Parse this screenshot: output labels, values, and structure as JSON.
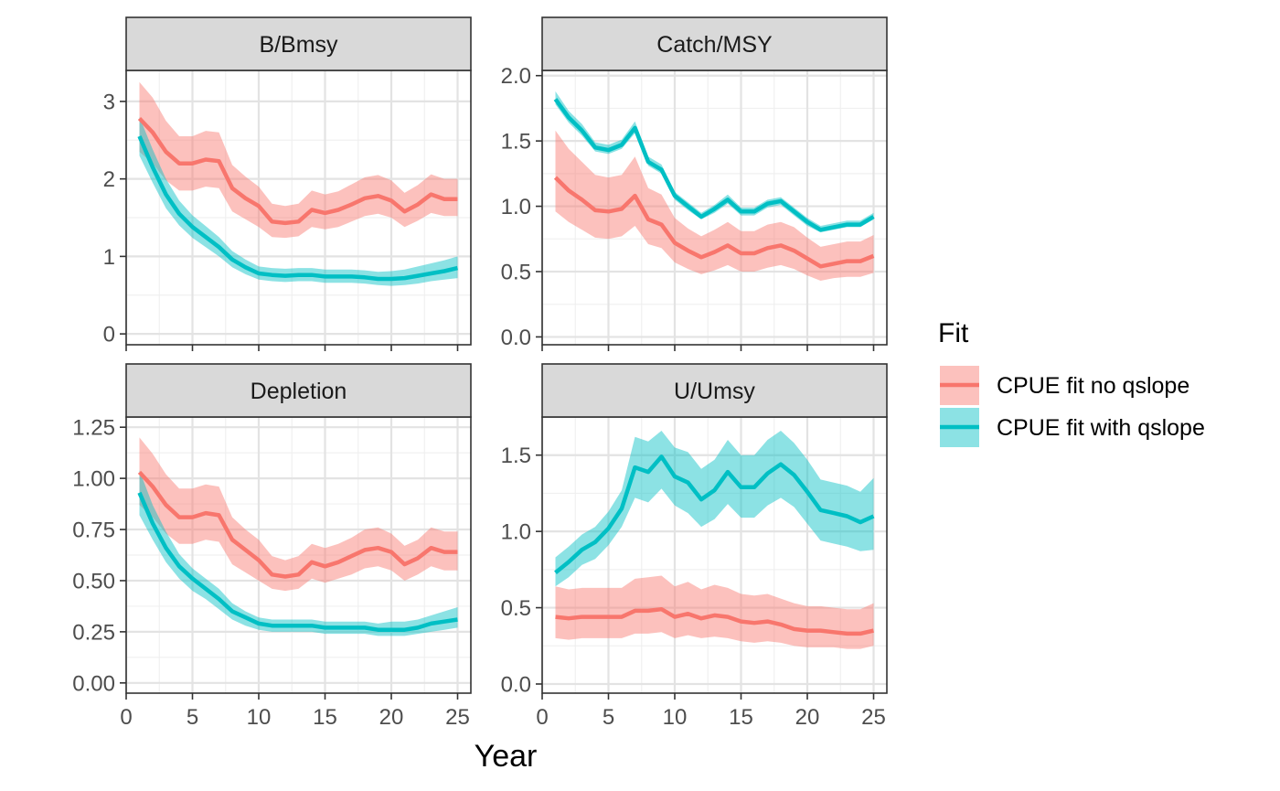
{
  "chart_data": {
    "type": "line",
    "xlabel": "Year",
    "x_ticks": [
      0,
      5,
      10,
      15,
      20,
      25
    ],
    "x_range": [
      0,
      26
    ],
    "grid": true,
    "legend": {
      "title": "Fit",
      "placement": "right",
      "entries": [
        {
          "name": "CPUE fit no qslope",
          "color": "#F8766D"
        },
        {
          "name": "CPUE fit with qslope",
          "color": "#00BFC4"
        }
      ]
    },
    "panels": [
      {
        "title": "B/Bmsy",
        "ylim": [
          -0.14,
          3.4
        ],
        "y_ticks": [
          0,
          1,
          2,
          3
        ],
        "y_tick_labels": [
          "0",
          "1",
          "2",
          "3"
        ],
        "series": [
          {
            "name": "CPUE fit no qslope",
            "color": "#F8766D",
            "x": [
              1,
              2,
              3,
              4,
              5,
              6,
              7,
              8,
              9,
              10,
              11,
              12,
              13,
              14,
              15,
              16,
              17,
              18,
              19,
              20,
              21,
              22,
              23,
              24,
              25
            ],
            "y": [
              2.78,
              2.6,
              2.35,
              2.2,
              2.2,
              2.25,
              2.23,
              1.88,
              1.75,
              1.65,
              1.45,
              1.43,
              1.45,
              1.6,
              1.56,
              1.6,
              1.67,
              1.75,
              1.78,
              1.72,
              1.58,
              1.67,
              1.8,
              1.74,
              1.74
            ],
            "lower": [
              2.35,
              2.2,
              1.98,
              1.85,
              1.85,
              1.9,
              1.88,
              1.58,
              1.48,
              1.38,
              1.25,
              1.24,
              1.26,
              1.38,
              1.35,
              1.38,
              1.45,
              1.52,
              1.55,
              1.5,
              1.38,
              1.46,
              1.56,
              1.52,
              1.52
            ],
            "upper": [
              3.25,
              3.05,
              2.75,
              2.55,
              2.55,
              2.62,
              2.6,
              2.18,
              2.03,
              1.9,
              1.68,
              1.65,
              1.68,
              1.85,
              1.8,
              1.84,
              1.93,
              2.02,
              2.05,
              1.98,
              1.82,
              1.92,
              2.06,
              2.0,
              2.0
            ]
          },
          {
            "name": "CPUE fit with qslope",
            "color": "#00BFC4",
            "x": [
              1,
              2,
              3,
              4,
              5,
              6,
              7,
              8,
              9,
              10,
              11,
              12,
              13,
              14,
              15,
              16,
              17,
              18,
              19,
              20,
              21,
              22,
              23,
              24,
              25
            ],
            "y": [
              2.55,
              2.15,
              1.8,
              1.55,
              1.38,
              1.25,
              1.12,
              0.96,
              0.86,
              0.78,
              0.76,
              0.75,
              0.76,
              0.76,
              0.74,
              0.74,
              0.74,
              0.73,
              0.71,
              0.71,
              0.72,
              0.75,
              0.78,
              0.81,
              0.85
            ],
            "lower": [
              2.3,
              1.95,
              1.62,
              1.4,
              1.24,
              1.12,
              1.0,
              0.86,
              0.77,
              0.7,
              0.68,
              0.67,
              0.68,
              0.68,
              0.66,
              0.66,
              0.66,
              0.65,
              0.63,
              0.62,
              0.63,
              0.65,
              0.68,
              0.7,
              0.72
            ],
            "upper": [
              2.8,
              2.38,
              2.0,
              1.72,
              1.53,
              1.39,
              1.25,
              1.07,
              0.96,
              0.87,
              0.85,
              0.84,
              0.85,
              0.85,
              0.83,
              0.83,
              0.83,
              0.82,
              0.8,
              0.81,
              0.83,
              0.87,
              0.91,
              0.95,
              1.0
            ]
          }
        ]
      },
      {
        "title": "Catch/MSY",
        "ylim": [
          -0.06,
          2.04
        ],
        "y_ticks": [
          0,
          0.5,
          1,
          1.5,
          2
        ],
        "y_tick_labels": [
          "0.0",
          "0.5",
          "1.0",
          "1.5",
          "2.0"
        ],
        "series": [
          {
            "name": "CPUE fit no qslope",
            "color": "#F8766D",
            "x": [
              1,
              2,
              3,
              4,
              5,
              6,
              7,
              8,
              9,
              10,
              11,
              12,
              13,
              14,
              15,
              16,
              17,
              18,
              19,
              20,
              21,
              22,
              23,
              24,
              25
            ],
            "y": [
              1.22,
              1.12,
              1.05,
              0.97,
              0.96,
              0.98,
              1.08,
              0.9,
              0.86,
              0.72,
              0.66,
              0.61,
              0.65,
              0.7,
              0.64,
              0.64,
              0.68,
              0.7,
              0.66,
              0.6,
              0.54,
              0.56,
              0.58,
              0.58,
              0.62
            ],
            "lower": [
              0.96,
              0.88,
              0.82,
              0.76,
              0.75,
              0.77,
              0.85,
              0.71,
              0.68,
              0.57,
              0.52,
              0.48,
              0.51,
              0.55,
              0.5,
              0.5,
              0.53,
              0.55,
              0.52,
              0.47,
              0.43,
              0.45,
              0.46,
              0.46,
              0.49
            ],
            "upper": [
              1.58,
              1.44,
              1.34,
              1.24,
              1.22,
              1.24,
              1.38,
              1.14,
              1.09,
              0.91,
              0.83,
              0.77,
              0.82,
              0.88,
              0.81,
              0.81,
              0.86,
              0.88,
              0.84,
              0.76,
              0.69,
              0.71,
              0.73,
              0.73,
              0.78
            ]
          },
          {
            "name": "CPUE fit with qslope",
            "color": "#00BFC4",
            "x": [
              1,
              2,
              3,
              4,
              5,
              6,
              7,
              8,
              9,
              10,
              11,
              12,
              13,
              14,
              15,
              16,
              17,
              18,
              19,
              20,
              21,
              22,
              23,
              24,
              25
            ],
            "y": [
              1.82,
              1.68,
              1.58,
              1.45,
              1.43,
              1.47,
              1.6,
              1.34,
              1.28,
              1.08,
              1.0,
              0.92,
              0.98,
              1.05,
              0.96,
              0.96,
              1.02,
              1.04,
              0.96,
              0.88,
              0.82,
              0.84,
              0.86,
              0.86,
              0.92
            ],
            "lower": [
              1.78,
              1.64,
              1.54,
              1.42,
              1.4,
              1.44,
              1.56,
              1.31,
              1.25,
              1.05,
              0.97,
              0.9,
              0.95,
              1.02,
              0.93,
              0.93,
              0.99,
              1.01,
              0.93,
              0.85,
              0.8,
              0.82,
              0.84,
              0.84,
              0.9
            ],
            "upper": [
              1.88,
              1.73,
              1.63,
              1.49,
              1.47,
              1.51,
              1.65,
              1.38,
              1.32,
              1.11,
              1.03,
              0.95,
              1.01,
              1.09,
              0.99,
              0.99,
              1.05,
              1.07,
              0.99,
              0.91,
              0.85,
              0.87,
              0.89,
              0.89,
              0.95
            ]
          }
        ]
      },
      {
        "title": "Depletion",
        "ylim": [
          -0.05,
          1.3
        ],
        "y_ticks": [
          0,
          0.25,
          0.5,
          0.75,
          1,
          1.25
        ],
        "y_tick_labels": [
          "0.00",
          "0.25",
          "0.50",
          "0.75",
          "1.00",
          "1.25"
        ],
        "series": [
          {
            "name": "CPUE fit no qslope",
            "color": "#F8766D",
            "x": [
              1,
              2,
              3,
              4,
              5,
              6,
              7,
              8,
              9,
              10,
              11,
              12,
              13,
              14,
              15,
              16,
              17,
              18,
              19,
              20,
              21,
              22,
              23,
              24,
              25
            ],
            "y": [
              1.03,
              0.96,
              0.87,
              0.81,
              0.81,
              0.83,
              0.82,
              0.7,
              0.65,
              0.6,
              0.53,
              0.52,
              0.53,
              0.59,
              0.57,
              0.59,
              0.62,
              0.65,
              0.66,
              0.64,
              0.58,
              0.61,
              0.66,
              0.64,
              0.64
            ],
            "lower": [
              0.87,
              0.81,
              0.73,
              0.68,
              0.68,
              0.7,
              0.69,
              0.58,
              0.54,
              0.5,
              0.46,
              0.45,
              0.46,
              0.51,
              0.49,
              0.51,
              0.53,
              0.56,
              0.57,
              0.55,
              0.5,
              0.53,
              0.57,
              0.55,
              0.55
            ],
            "upper": [
              1.2,
              1.12,
              1.02,
              0.95,
              0.95,
              0.97,
              0.96,
              0.81,
              0.75,
              0.7,
              0.62,
              0.6,
              0.62,
              0.68,
              0.66,
              0.68,
              0.71,
              0.75,
              0.76,
              0.73,
              0.67,
              0.7,
              0.76,
              0.74,
              0.74
            ]
          },
          {
            "name": "CPUE fit with qslope",
            "color": "#00BFC4",
            "x": [
              1,
              2,
              3,
              4,
              5,
              6,
              7,
              8,
              9,
              10,
              11,
              12,
              13,
              14,
              15,
              16,
              17,
              18,
              19,
              20,
              21,
              22,
              23,
              24,
              25
            ],
            "y": [
              0.93,
              0.78,
              0.66,
              0.57,
              0.51,
              0.46,
              0.41,
              0.35,
              0.32,
              0.29,
              0.28,
              0.28,
              0.28,
              0.28,
              0.27,
              0.27,
              0.27,
              0.27,
              0.26,
              0.26,
              0.26,
              0.27,
              0.29,
              0.3,
              0.31
            ],
            "lower": [
              0.82,
              0.7,
              0.59,
              0.51,
              0.45,
              0.41,
              0.36,
              0.31,
              0.28,
              0.26,
              0.25,
              0.25,
              0.25,
              0.25,
              0.24,
              0.24,
              0.24,
              0.24,
              0.23,
              0.23,
              0.23,
              0.24,
              0.25,
              0.26,
              0.27
            ],
            "upper": [
              1.04,
              0.87,
              0.74,
              0.63,
              0.56,
              0.51,
              0.46,
              0.39,
              0.35,
              0.32,
              0.31,
              0.31,
              0.31,
              0.31,
              0.3,
              0.3,
              0.3,
              0.3,
              0.29,
              0.3,
              0.3,
              0.31,
              0.33,
              0.35,
              0.37
            ]
          }
        ]
      },
      {
        "title": "U/Umsy",
        "ylim": [
          -0.06,
          1.75
        ],
        "y_ticks": [
          0,
          0.5,
          1,
          1.5
        ],
        "y_tick_labels": [
          "0.0",
          "0.5",
          "1.0",
          "1.5"
        ],
        "series": [
          {
            "name": "CPUE fit no qslope",
            "color": "#F8766D",
            "x": [
              1,
              2,
              3,
              4,
              5,
              6,
              7,
              8,
              9,
              10,
              11,
              12,
              13,
              14,
              15,
              16,
              17,
              18,
              19,
              20,
              21,
              22,
              23,
              24,
              25
            ],
            "y": [
              0.44,
              0.43,
              0.44,
              0.44,
              0.44,
              0.44,
              0.48,
              0.48,
              0.49,
              0.44,
              0.46,
              0.43,
              0.45,
              0.44,
              0.41,
              0.4,
              0.41,
              0.39,
              0.36,
              0.35,
              0.35,
              0.34,
              0.33,
              0.33,
              0.35
            ],
            "lower": [
              0.3,
              0.29,
              0.3,
              0.3,
              0.3,
              0.3,
              0.33,
              0.33,
              0.34,
              0.3,
              0.32,
              0.3,
              0.31,
              0.3,
              0.28,
              0.27,
              0.28,
              0.27,
              0.25,
              0.24,
              0.24,
              0.24,
              0.23,
              0.23,
              0.25
            ],
            "upper": [
              0.64,
              0.62,
              0.63,
              0.63,
              0.63,
              0.63,
              0.69,
              0.7,
              0.71,
              0.64,
              0.67,
              0.62,
              0.65,
              0.63,
              0.59,
              0.58,
              0.59,
              0.56,
              0.53,
              0.51,
              0.51,
              0.5,
              0.49,
              0.49,
              0.53
            ]
          },
          {
            "name": "CPUE fit with qslope",
            "color": "#00BFC4",
            "x": [
              1,
              2,
              3,
              4,
              5,
              6,
              7,
              8,
              9,
              10,
              11,
              12,
              13,
              14,
              15,
              16,
              17,
              18,
              19,
              20,
              21,
              22,
              23,
              24,
              25
            ],
            "y": [
              0.73,
              0.8,
              0.88,
              0.93,
              1.02,
              1.15,
              1.42,
              1.39,
              1.49,
              1.36,
              1.32,
              1.21,
              1.27,
              1.39,
              1.29,
              1.29,
              1.38,
              1.44,
              1.37,
              1.26,
              1.14,
              1.12,
              1.1,
              1.06,
              1.1
            ],
            "lower": [
              0.64,
              0.7,
              0.78,
              0.82,
              0.91,
              1.03,
              1.22,
              1.19,
              1.28,
              1.17,
              1.12,
              1.03,
              1.08,
              1.18,
              1.09,
              1.09,
              1.17,
              1.22,
              1.16,
              1.05,
              0.94,
              0.92,
              0.9,
              0.87,
              0.88
            ],
            "upper": [
              0.83,
              0.9,
              0.98,
              1.03,
              1.13,
              1.27,
              1.62,
              1.59,
              1.66,
              1.55,
              1.52,
              1.41,
              1.47,
              1.6,
              1.5,
              1.5,
              1.6,
              1.66,
              1.58,
              1.47,
              1.34,
              1.32,
              1.3,
              1.26,
              1.35
            ]
          }
        ]
      }
    ]
  }
}
